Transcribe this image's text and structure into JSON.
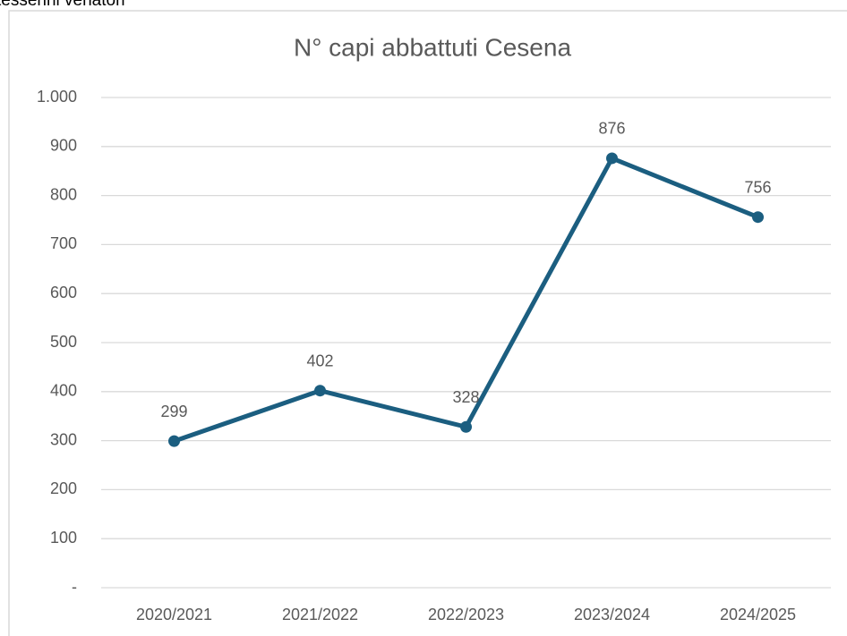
{
  "chart_data": {
    "type": "line",
    "caption": "tesserini venatori",
    "title": "N° capi abbattuti Cesena",
    "categories": [
      "2020/2021",
      "2021/2022",
      "2022/2023",
      "2023/2024",
      "2024/2025"
    ],
    "values": [
      299,
      402,
      328,
      876,
      756
    ],
    "color": "#1b5e80",
    "ylim": [
      0,
      1000
    ],
    "yticks": [
      {
        "value": 0,
        "label": "-"
      },
      100,
      200,
      300,
      400,
      500,
      600,
      700,
      800,
      900,
      {
        "value": 1000,
        "label": "1.000"
      }
    ],
    "grid": true
  }
}
